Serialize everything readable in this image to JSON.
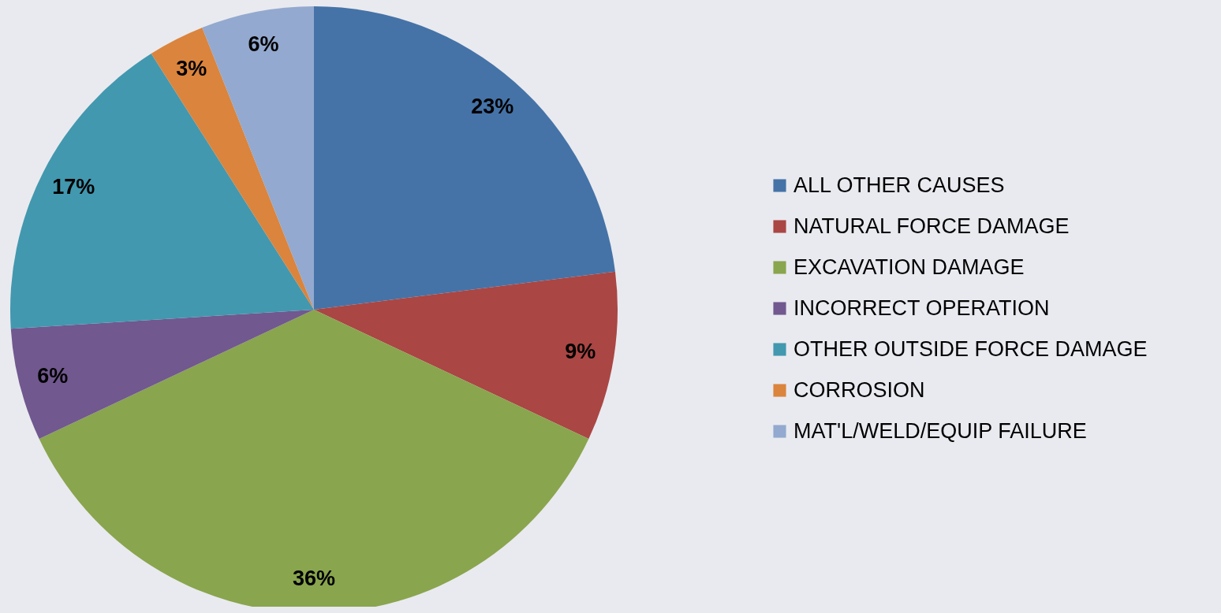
{
  "chart_data": {
    "type": "pie",
    "categories": [
      "ALL OTHER CAUSES",
      "NATURAL FORCE DAMAGE",
      "EXCAVATION DAMAGE",
      "INCORRECT OPERATION",
      "OTHER OUTSIDE FORCE DAMAGE",
      "CORROSION",
      "MAT'L/WELD/EQUIP FAILURE"
    ],
    "values": [
      23,
      9,
      36,
      6,
      17,
      3,
      6
    ],
    "value_labels": [
      "23%",
      "9%",
      "36%",
      "6%",
      "17%",
      "3%",
      "6%"
    ],
    "colors": [
      "#4573a7",
      "#aa4644",
      "#89a54e",
      "#71588f",
      "#4298af",
      "#db843d",
      "#93a9cf"
    ],
    "legend": "right"
  }
}
